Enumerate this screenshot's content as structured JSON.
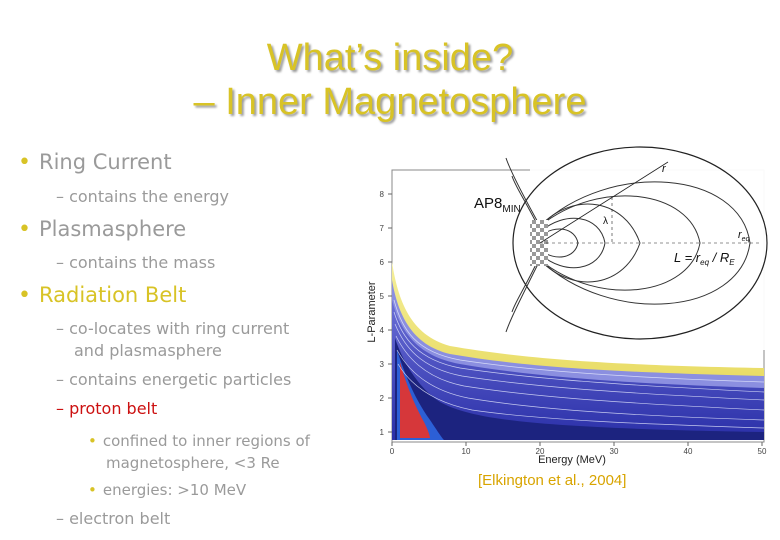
{
  "title": {
    "line1": "What’s inside?",
    "line2": "– Inner Magnetosphere"
  },
  "bullets": [
    {
      "label": "Ring Current",
      "sub": [
        "– contains the energy"
      ]
    },
    {
      "label": "Plasmasphere",
      "sub": [
        "– contains the mass"
      ]
    },
    {
      "label": "Radiation Belt",
      "sub": [
        "– co-locates with ring current",
        "and plasmasphere",
        "– contains energetic particles",
        "– proton belt"
      ],
      "subsub": [
        "confined to inner regions of",
        "magnetosphere, <3 Re",
        "energies: >10 MeV"
      ],
      "last": "– electron belt"
    }
  ],
  "figure": {
    "model_label": "AP8",
    "model_sub": "MIN",
    "ylabel": "L-Parameter",
    "xlabel": "Energy (MeV)",
    "y_ticks": [
      "1",
      "2",
      "3",
      "4",
      "5",
      "6",
      "7",
      "8"
    ],
    "x_ticks": [
      "0",
      "10",
      "20",
      "30",
      "40",
      "50"
    ],
    "inset": {
      "r": "r",
      "lambda": "λ",
      "req": "r",
      "req_sub": "eq",
      "formula": "L = r",
      "formula_sub": "eq",
      "formula_tail": " / R",
      "formula_tail_sub": "E"
    }
  },
  "citation": "[Elkington et al., 2004]",
  "colors": {
    "title": "#d8c326",
    "text": "#9a9a9a",
    "bullet": "#d8c326",
    "highlight": "#cc1111",
    "citation": "#d8a400"
  }
}
